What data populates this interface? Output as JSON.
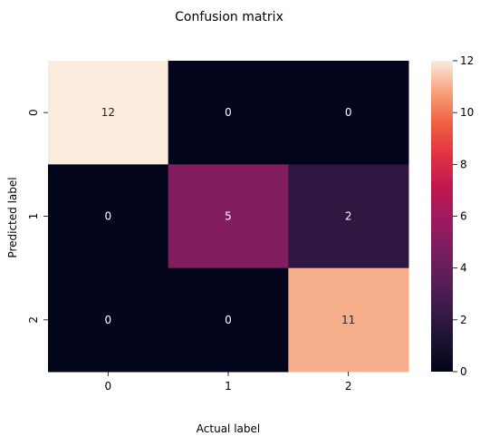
{
  "chart_data": {
    "type": "heatmap",
    "title": "Confusion matrix",
    "xlabel": "Actual label",
    "ylabel": "Predicted label",
    "x_categories": [
      "0",
      "1",
      "2"
    ],
    "y_categories": [
      "0",
      "1",
      "2"
    ],
    "values": [
      [
        12,
        0,
        0
      ],
      [
        0,
        5,
        2
      ],
      [
        0,
        0,
        11
      ]
    ],
    "annotations": true,
    "colormap": "rocket",
    "vmin": 0,
    "vmax": 12,
    "colorbar_ticks": [
      "0",
      "2",
      "4",
      "6",
      "8",
      "10",
      "12"
    ]
  }
}
